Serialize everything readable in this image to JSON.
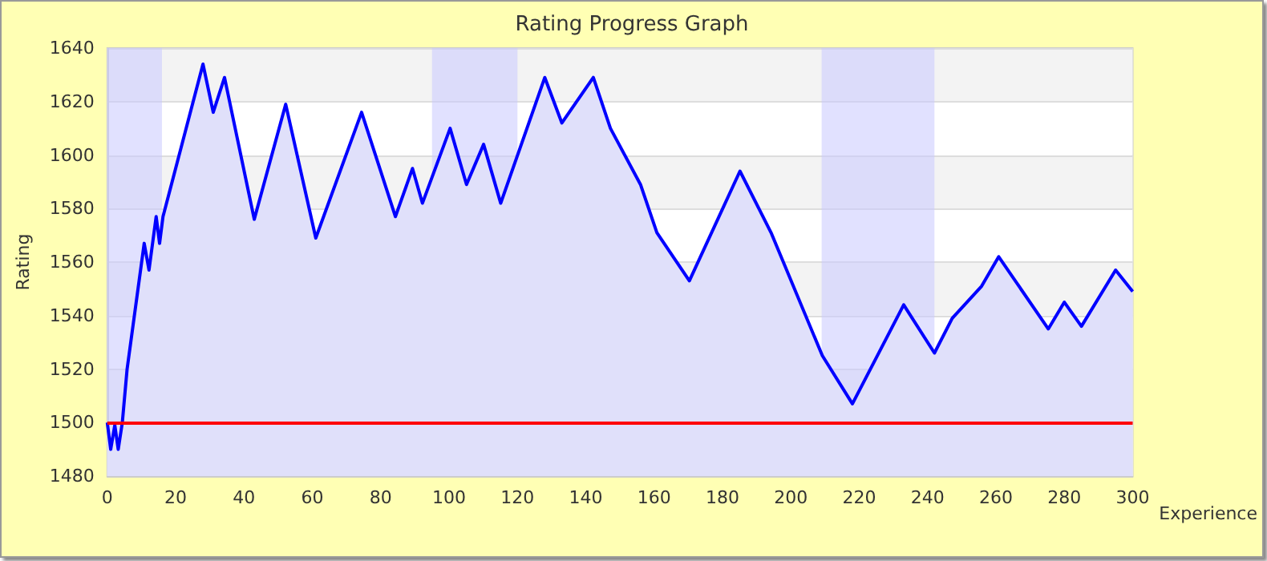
{
  "chart_data": {
    "type": "area",
    "title": "Rating Progress Graph",
    "xlabel": "Experience",
    "ylabel": "Rating",
    "x": [
      0,
      1,
      2.2,
      3.2,
      4.4,
      5.8,
      10.8,
      12.2,
      14.3,
      15.3,
      16.3,
      28,
      31,
      34.3,
      43,
      52.2,
      61,
      74.4,
      84.3,
      89.3,
      92.2,
      100.3,
      105.1,
      110.1,
      115.1,
      128,
      133,
      142.2,
      147.2,
      156,
      160.8,
      170.3,
      185.1,
      194.2,
      209.2,
      218,
      233,
      242,
      247.2,
      255.8,
      260.8,
      275.3,
      280,
      285,
      295,
      300
    ],
    "series": [
      {
        "color": "#0000ff",
        "values": [
          1500,
          1490,
          1499,
          1490,
          1500,
          1520,
          1567,
          1557,
          1577,
          1567,
          1577,
          1634,
          1616,
          1629,
          1576,
          1619,
          1569,
          1616,
          1577,
          1595,
          1582,
          1610,
          1589,
          1604,
          1582,
          1629,
          1612,
          1629,
          1610,
          1589,
          1571,
          1553,
          1594,
          1571,
          1525,
          1507,
          1544,
          1526,
          1539,
          1551,
          1562,
          1535,
          1545,
          1536,
          1557,
          1549
        ]
      }
    ],
    "xlim": [
      0,
      300
    ],
    "xticks": [
      0,
      20,
      40,
      60,
      80,
      100,
      120,
      140,
      160,
      180,
      200,
      220,
      240,
      260,
      280,
      300
    ],
    "ylim": [
      1480,
      1640
    ],
    "yticks": [
      1480,
      1500,
      1520,
      1540,
      1560,
      1580,
      1600,
      1620,
      1640
    ],
    "grid": "y",
    "marker": "none",
    "ref_lines": [
      {
        "axis": "y",
        "value": 1500,
        "color": "#ff0000"
      }
    ],
    "bands": [
      {
        "axis": "x",
        "from": 0,
        "to": 16,
        "color": "#c8c8ff"
      },
      {
        "axis": "x",
        "from": 95,
        "to": 120,
        "color": "#c8c8ff"
      },
      {
        "axis": "x",
        "from": 209,
        "to": 242,
        "color": "#c8c8ff"
      }
    ]
  }
}
